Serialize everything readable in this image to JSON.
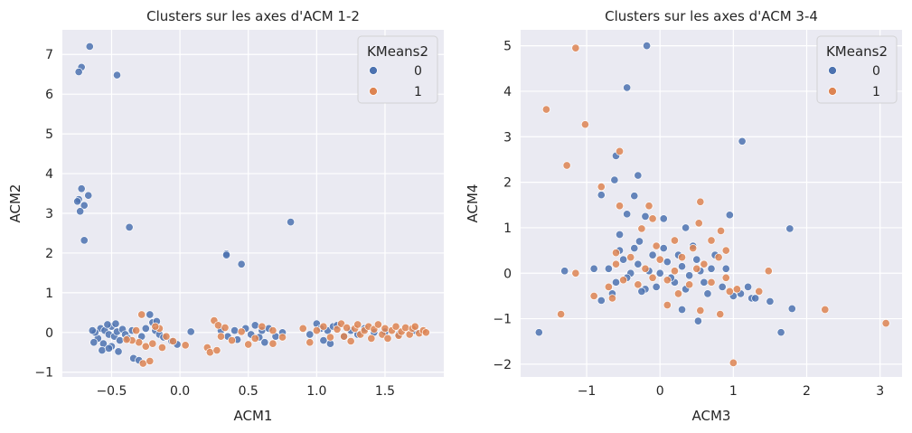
{
  "figure": {
    "background": "#ffffff",
    "axes_bg": "#eaeaf2",
    "grid_color": "#ffffff"
  },
  "legend": {
    "title": "KMeans2",
    "entries": [
      {
        "label": "0",
        "color": "#4c72b0"
      },
      {
        "label": "1",
        "color": "#dd8452"
      }
    ]
  },
  "chart_data": [
    {
      "type": "scatter",
      "title": "Clusters sur les axes d'ACM 1-2",
      "xlabel": "ACM1",
      "ylabel": "ACM2",
      "xlim": [
        -0.86,
        1.93
      ],
      "ylim": [
        -1.12,
        7.62
      ],
      "xticks": [
        -0.5,
        0.0,
        0.5,
        1.0,
        1.5
      ],
      "xtick_labels": [
        "−0.5",
        "0.0",
        "0.5",
        "1.0",
        "1.5"
      ],
      "yticks": [
        -1,
        0,
        1,
        2,
        3,
        4,
        5,
        6,
        7
      ],
      "ytick_labels": [
        "−1",
        "0",
        "1",
        "2",
        "3",
        "4",
        "5",
        "6",
        "7"
      ],
      "grid": true,
      "legend_position": "top-right",
      "series": [
        {
          "name": "0",
          "color": "#4c72b0",
          "points": [
            [
              -0.66,
              7.2
            ],
            [
              -0.72,
              6.68
            ],
            [
              -0.74,
              6.56
            ],
            [
              -0.46,
              6.48
            ],
            [
              -0.72,
              3.62
            ],
            [
              -0.67,
              3.45
            ],
            [
              -0.74,
              3.35
            ],
            [
              -0.75,
              3.3
            ],
            [
              -0.7,
              3.2
            ],
            [
              -0.73,
              3.05
            ],
            [
              -0.37,
              2.65
            ],
            [
              -0.7,
              2.32
            ],
            [
              0.34,
              1.98
            ],
            [
              0.34,
              1.95
            ],
            [
              0.45,
              1.72
            ],
            [
              0.81,
              2.78
            ],
            [
              -0.58,
              0.1
            ],
            [
              -0.55,
              0.05
            ],
            [
              -0.52,
              -0.05
            ],
            [
              -0.5,
              0.15
            ],
            [
              -0.48,
              -0.1
            ],
            [
              -0.46,
              0.02
            ],
            [
              -0.44,
              -0.2
            ],
            [
              -0.42,
              0.08
            ],
            [
              -0.6,
              -0.15
            ],
            [
              -0.62,
              0.0
            ],
            [
              -0.56,
              -0.28
            ],
            [
              -0.5,
              -0.35
            ],
            [
              -0.47,
              0.22
            ],
            [
              -0.53,
              0.2
            ],
            [
              -0.4,
              -0.05
            ],
            [
              -0.38,
              -0.15
            ],
            [
              -0.35,
              0.05
            ],
            [
              -0.57,
              -0.45
            ],
            [
              -0.45,
              -0.48
            ],
            [
              -0.52,
              -0.4
            ],
            [
              -0.34,
              -0.65
            ],
            [
              -0.3,
              -0.7
            ],
            [
              -0.63,
              -0.25
            ],
            [
              -0.64,
              0.05
            ],
            [
              -0.22,
              0.45
            ],
            [
              -0.2,
              0.25
            ],
            [
              -0.18,
              0.05
            ],
            [
              -0.15,
              -0.05
            ],
            [
              -0.25,
              0.1
            ],
            [
              -0.12,
              -0.12
            ],
            [
              -0.17,
              0.28
            ],
            [
              -0.28,
              -0.1
            ],
            [
              -0.06,
              -0.22
            ],
            [
              -0.02,
              -0.3
            ],
            [
              0.08,
              0.02
            ],
            [
              0.3,
              0.05
            ],
            [
              0.35,
              -0.1
            ],
            [
              0.4,
              0.05
            ],
            [
              0.42,
              -0.18
            ],
            [
              0.48,
              0.1
            ],
            [
              0.52,
              -0.05
            ],
            [
              0.55,
              0.18
            ],
            [
              0.58,
              -0.12
            ],
            [
              0.6,
              0.05
            ],
            [
              0.62,
              -0.25
            ],
            [
              0.65,
              0.1
            ],
            [
              0.7,
              -0.1
            ],
            [
              0.75,
              0.0
            ],
            [
              0.95,
              -0.05
            ],
            [
              1.0,
              0.22
            ],
            [
              1.03,
              0.1
            ],
            [
              1.05,
              -0.2
            ],
            [
              1.08,
              0.05
            ],
            [
              1.1,
              -0.28
            ],
            [
              1.12,
              0.15
            ],
            [
              1.15,
              0.18
            ],
            [
              1.2,
              -0.1
            ],
            [
              1.25,
              0.05
            ],
            [
              1.3,
              -0.05
            ],
            [
              1.35,
              0.1
            ],
            [
              1.42,
              0.0
            ],
            [
              1.5,
              0.02
            ],
            [
              1.6,
              -0.05
            ],
            [
              1.72,
              0.05
            ]
          ]
        },
        {
          "name": "1",
          "color": "#dd8452",
          "points": [
            [
              -0.28,
              0.45
            ],
            [
              -0.3,
              -0.25
            ],
            [
              -0.35,
              -0.2
            ],
            [
              -0.32,
              0.05
            ],
            [
              -0.25,
              -0.35
            ],
            [
              -0.2,
              -0.28
            ],
            [
              -0.15,
              0.1
            ],
            [
              -0.13,
              -0.38
            ],
            [
              -0.1,
              -0.1
            ],
            [
              -0.27,
              -0.78
            ],
            [
              -0.22,
              -0.72
            ],
            [
              -0.05,
              -0.22
            ],
            [
              0.04,
              -0.32
            ],
            [
              -0.39,
              -0.18
            ],
            [
              -0.18,
              0.15
            ],
            [
              0.2,
              -0.38
            ],
            [
              0.22,
              -0.5
            ],
            [
              0.25,
              0.3
            ],
            [
              0.27,
              -0.45
            ],
            [
              0.28,
              0.18
            ],
            [
              0.3,
              -0.1
            ],
            [
              0.33,
              0.12
            ],
            [
              0.38,
              -0.2
            ],
            [
              0.45,
              0.02
            ],
            [
              0.5,
              -0.3
            ],
            [
              0.55,
              -0.15
            ],
            [
              0.6,
              0.15
            ],
            [
              0.68,
              0.05
            ],
            [
              0.75,
              -0.12
            ],
            [
              0.68,
              -0.28
            ],
            [
              0.9,
              0.1
            ],
            [
              0.95,
              -0.25
            ],
            [
              1.0,
              0.05
            ],
            [
              1.05,
              0.15
            ],
            [
              1.1,
              -0.12
            ],
            [
              1.15,
              0.08
            ],
            [
              1.18,
              0.22
            ],
            [
              1.2,
              -0.1
            ],
            [
              1.22,
              0.12
            ],
            [
              1.25,
              -0.22
            ],
            [
              1.28,
              0.1
            ],
            [
              1.3,
              0.2
            ],
            [
              1.32,
              -0.05
            ],
            [
              1.35,
              0.05
            ],
            [
              1.38,
              0.15
            ],
            [
              1.4,
              -0.15
            ],
            [
              1.42,
              0.08
            ],
            [
              1.45,
              0.2
            ],
            [
              1.48,
              -0.05
            ],
            [
              1.5,
              0.1
            ],
            [
              1.52,
              -0.15
            ],
            [
              1.55,
              0.05
            ],
            [
              1.58,
              0.15
            ],
            [
              1.6,
              -0.08
            ],
            [
              1.62,
              0.02
            ],
            [
              1.65,
              0.12
            ],
            [
              1.68,
              -0.05
            ],
            [
              1.7,
              0.1
            ],
            [
              1.72,
              0.15
            ],
            [
              1.75,
              -0.02
            ],
            [
              1.78,
              0.05
            ],
            [
              1.8,
              0.0
            ]
          ]
        }
      ]
    },
    {
      "type": "scatter",
      "title": "Clusters sur les axes d'ACM 3-4",
      "xlabel": "ACM3",
      "ylabel": "ACM4",
      "xlim": [
        -1.9,
        3.3
      ],
      "ylim": [
        -2.28,
        5.35
      ],
      "xticks": [
        -1,
        0,
        1,
        2,
        3
      ],
      "xtick_labels": [
        "−1",
        "0",
        "1",
        "2",
        "3"
      ],
      "yticks": [
        -2,
        -1,
        0,
        1,
        2,
        3,
        4,
        5
      ],
      "ytick_labels": [
        "−2",
        "−1",
        "0",
        "1",
        "2",
        "3",
        "4",
        "5"
      ],
      "grid": true,
      "legend_position": "top-right",
      "series": [
        {
          "name": "0",
          "color": "#4c72b0",
          "points": [
            [
              -0.18,
              5.0
            ],
            [
              -0.45,
              4.08
            ],
            [
              1.12,
              2.9
            ],
            [
              -0.6,
              2.58
            ],
            [
              -0.3,
              2.15
            ],
            [
              -0.62,
              2.05
            ],
            [
              -0.35,
              1.7
            ],
            [
              -0.8,
              1.72
            ],
            [
              -0.45,
              1.3
            ],
            [
              -0.2,
              1.25
            ],
            [
              0.05,
              1.2
            ],
            [
              -0.55,
              0.85
            ],
            [
              -0.28,
              0.7
            ],
            [
              0.35,
              1.0
            ],
            [
              0.95,
              1.28
            ],
            [
              1.77,
              0.98
            ],
            [
              -1.65,
              -1.3
            ],
            [
              -1.3,
              0.05
            ],
            [
              1.8,
              -0.78
            ],
            [
              1.65,
              -1.3
            ],
            [
              0.52,
              -1.05
            ],
            [
              -0.7,
              0.1
            ],
            [
              -0.6,
              -0.2
            ],
            [
              -0.5,
              0.3
            ],
            [
              -0.4,
              0.0
            ],
            [
              -0.3,
              0.2
            ],
            [
              -0.2,
              -0.35
            ],
            [
              -0.1,
              0.4
            ],
            [
              0.0,
              0.0
            ],
            [
              0.1,
              0.25
            ],
            [
              0.2,
              -0.2
            ],
            [
              0.3,
              0.15
            ],
            [
              0.4,
              -0.05
            ],
            [
              0.5,
              0.3
            ],
            [
              0.6,
              -0.2
            ],
            [
              0.7,
              0.1
            ],
            [
              -0.65,
              -0.45
            ],
            [
              -0.55,
              0.5
            ],
            [
              -0.45,
              -0.1
            ],
            [
              -0.35,
              0.55
            ],
            [
              -0.25,
              -0.4
            ],
            [
              -0.15,
              0.05
            ],
            [
              -0.05,
              -0.3
            ],
            [
              0.05,
              0.55
            ],
            [
              0.15,
              -0.1
            ],
            [
              0.25,
              0.4
            ],
            [
              0.35,
              -0.35
            ],
            [
              0.45,
              0.6
            ],
            [
              0.55,
              0.05
            ],
            [
              0.65,
              -0.45
            ],
            [
              0.75,
              0.4
            ],
            [
              0.85,
              -0.3
            ],
            [
              0.9,
              0.1
            ],
            [
              1.0,
              -0.5
            ],
            [
              1.1,
              -0.45
            ],
            [
              1.25,
              -0.55
            ],
            [
              1.3,
              -0.55
            ],
            [
              1.5,
              -0.62
            ],
            [
              0.3,
              -0.8
            ],
            [
              -0.8,
              -0.6
            ],
            [
              -0.9,
              0.1
            ],
            [
              1.2,
              -0.3
            ]
          ]
        },
        {
          "name": "1",
          "color": "#dd8452",
          "points": [
            [
              -1.15,
              4.95
            ],
            [
              -1.55,
              3.6
            ],
            [
              -1.02,
              3.27
            ],
            [
              -1.27,
              2.37
            ],
            [
              -0.55,
              2.68
            ],
            [
              -0.8,
              1.9
            ],
            [
              -0.15,
              1.48
            ],
            [
              -0.55,
              1.48
            ],
            [
              0.55,
              1.57
            ],
            [
              -0.1,
              1.2
            ],
            [
              -0.25,
              0.98
            ],
            [
              0.83,
              0.93
            ],
            [
              0.53,
              1.1
            ],
            [
              0.2,
              0.72
            ],
            [
              0.7,
              0.72
            ],
            [
              -0.6,
              0.45
            ],
            [
              0.9,
              0.5
            ],
            [
              1.48,
              0.05
            ],
            [
              2.25,
              -0.8
            ],
            [
              3.08,
              -1.1
            ],
            [
              0.55,
              -0.82
            ],
            [
              0.1,
              -0.7
            ],
            [
              0.82,
              -0.9
            ],
            [
              1.0,
              -1.97
            ],
            [
              -1.35,
              -0.9
            ],
            [
              -1.15,
              0.0
            ],
            [
              -0.9,
              -0.5
            ],
            [
              -0.7,
              -0.3
            ],
            [
              -0.6,
              0.2
            ],
            [
              -0.5,
              -0.15
            ],
            [
              -0.4,
              0.35
            ],
            [
              -0.3,
              -0.25
            ],
            [
              -0.2,
              0.1
            ],
            [
              -0.1,
              -0.1
            ],
            [
              0.0,
              0.3
            ],
            [
              0.1,
              -0.15
            ],
            [
              0.2,
              0.05
            ],
            [
              0.3,
              0.35
            ],
            [
              0.4,
              -0.25
            ],
            [
              0.5,
              0.1
            ],
            [
              0.6,
              0.2
            ],
            [
              0.7,
              -0.2
            ],
            [
              0.8,
              0.35
            ],
            [
              0.9,
              -0.1
            ],
            [
              0.95,
              -0.4
            ],
            [
              1.05,
              -0.35
            ],
            [
              1.35,
              -0.4
            ],
            [
              -0.65,
              -0.55
            ],
            [
              0.25,
              -0.45
            ],
            [
              0.45,
              0.55
            ],
            [
              -0.05,
              0.6
            ]
          ]
        }
      ]
    }
  ]
}
